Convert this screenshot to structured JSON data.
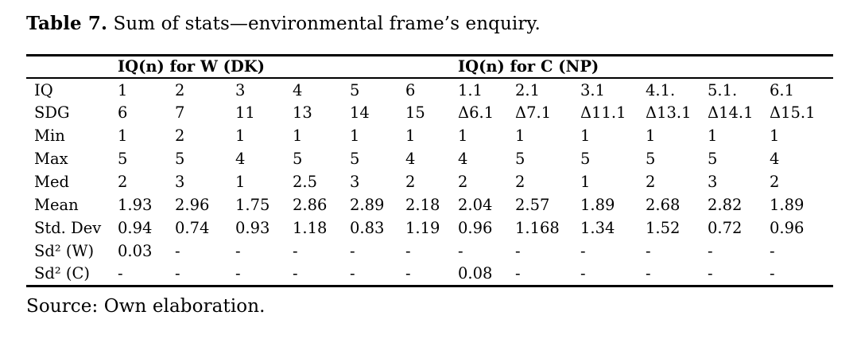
{
  "title": {
    "label": "Table 7.",
    "text": " Sum of stats—environmental frame’s enquiry."
  },
  "table": {
    "group_headers": [
      "IQ(n) for W (DK)",
      "IQ(n) for C (NP)"
    ],
    "rows": [
      {
        "label": "IQ",
        "values": [
          "1",
          "2",
          "3",
          "4",
          "5",
          "6",
          "1.1",
          "2.1",
          "3.1",
          "4.1.",
          "5.1.",
          "6.1"
        ]
      },
      {
        "label": "SDG",
        "values": [
          "6",
          "7",
          "11",
          "13",
          "14",
          "15",
          "Δ6.1",
          "Δ7.1",
          "Δ11.1",
          "Δ13.1",
          "Δ14.1",
          "Δ15.1"
        ]
      },
      {
        "label": "Min",
        "values": [
          "1",
          "2",
          "1",
          "1",
          "1",
          "1",
          "1",
          "1",
          "1",
          "1",
          "1",
          "1"
        ]
      },
      {
        "label": "Max",
        "values": [
          "5",
          "5",
          "4",
          "5",
          "5",
          "4",
          "4",
          "5",
          "5",
          "5",
          "5",
          "4"
        ]
      },
      {
        "label": "Med",
        "values": [
          "2",
          "3",
          "1",
          "2.5",
          "3",
          "2",
          "2",
          "2",
          "1",
          "2",
          "3",
          "2"
        ]
      },
      {
        "label": "Mean",
        "values": [
          "1.93",
          "2.96",
          "1.75",
          "2.86",
          "2.89",
          "2.18",
          "2.04",
          "2.57",
          "1.89",
          "2.68",
          "2.82",
          "1.89"
        ]
      },
      {
        "label": "Std. Dev",
        "values": [
          "0.94",
          "0.74",
          "0.93",
          "1.18",
          "0.83",
          "1.19",
          "0.96",
          "1.168",
          "1.34",
          "1.52",
          "0.72",
          "0.96"
        ]
      },
      {
        "label": "Sd² (W)",
        "values": [
          "0.03",
          "-",
          "-",
          "-",
          "-",
          "-",
          "-",
          "-",
          "-",
          "-",
          "-",
          "-"
        ]
      },
      {
        "label": "Sd² (C)",
        "values": [
          "-",
          "-",
          "-",
          "-",
          "-",
          "-",
          "0.08",
          "-",
          "-",
          "-",
          "-",
          "-"
        ]
      }
    ]
  },
  "source": "Source: Own elaboration."
}
